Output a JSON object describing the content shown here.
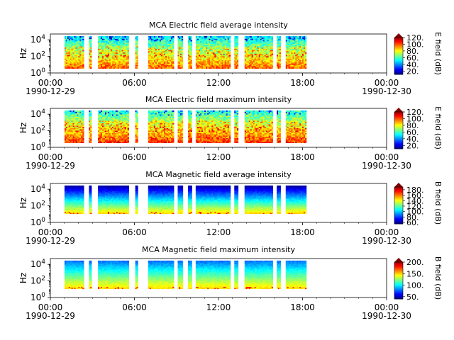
{
  "figure": {
    "time_ticks": [
      "00:00",
      "06:00",
      "12:00",
      "18:00",
      "00:00"
    ],
    "start_date": "1990-12-29",
    "end_date": "1990-12-30",
    "y_ticks": [
      "10",
      "10",
      "10"
    ],
    "y_tick_exponents": [
      "0",
      "2",
      "4"
    ],
    "ylabel": "Hz"
  },
  "chart_data": [
    {
      "type": "heatmap",
      "title": "MCA  Electric field average intensity",
      "ylabel": "Hz",
      "yscale": "log",
      "ylim": [
        1,
        50000
      ],
      "xlim": [
        "1990-12-29 00:00",
        "1990-12-30 00:00"
      ],
      "colorbar_label": "E field (dB)",
      "colorbar_ticks": [
        "20.",
        "40.",
        "60.",
        "80.",
        "100.",
        "120."
      ],
      "colorbar_range": [
        10,
        120
      ],
      "colormap": "jet",
      "colorbar_extend": "max"
    },
    {
      "type": "heatmap",
      "title": "MCA  Electric field maximum intensity",
      "ylabel": "Hz",
      "yscale": "log",
      "ylim": [
        1,
        50000
      ],
      "xlim": [
        "1990-12-29 00:00",
        "1990-12-30 00:00"
      ],
      "colorbar_label": "E field (dB)",
      "colorbar_ticks": [
        "20.",
        "40.",
        "60.",
        "80.",
        "100.",
        "120."
      ],
      "colorbar_range": [
        10,
        120
      ],
      "colormap": "jet",
      "colorbar_extend": "max"
    },
    {
      "type": "heatmap",
      "title": "MCA  Magnetic field average intensity",
      "ylabel": "Hz",
      "yscale": "log",
      "ylim": [
        1,
        50000
      ],
      "xlim": [
        "1990-12-29 00:00",
        "1990-12-30 00:00"
      ],
      "colorbar_label": "B field (dB)",
      "colorbar_ticks": [
        "60.",
        "80.",
        "100.",
        "120.",
        "140.",
        "160.",
        "180."
      ],
      "colorbar_range": [
        55,
        190
      ],
      "colormap": "jet",
      "colorbar_extend": "max"
    },
    {
      "type": "heatmap",
      "title": "MCA  Magnetic field maximum intensity",
      "ylabel": "Hz",
      "yscale": "log",
      "ylim": [
        1,
        50000
      ],
      "xlim": [
        "1990-12-29 00:00",
        "1990-12-30 00:00"
      ],
      "colorbar_label": "B field (dB)",
      "colorbar_ticks": [
        "50.",
        "100.",
        "150.",
        "200."
      ],
      "colorbar_range": [
        40,
        200
      ],
      "colormap": "jet",
      "colorbar_extend": "max"
    }
  ]
}
